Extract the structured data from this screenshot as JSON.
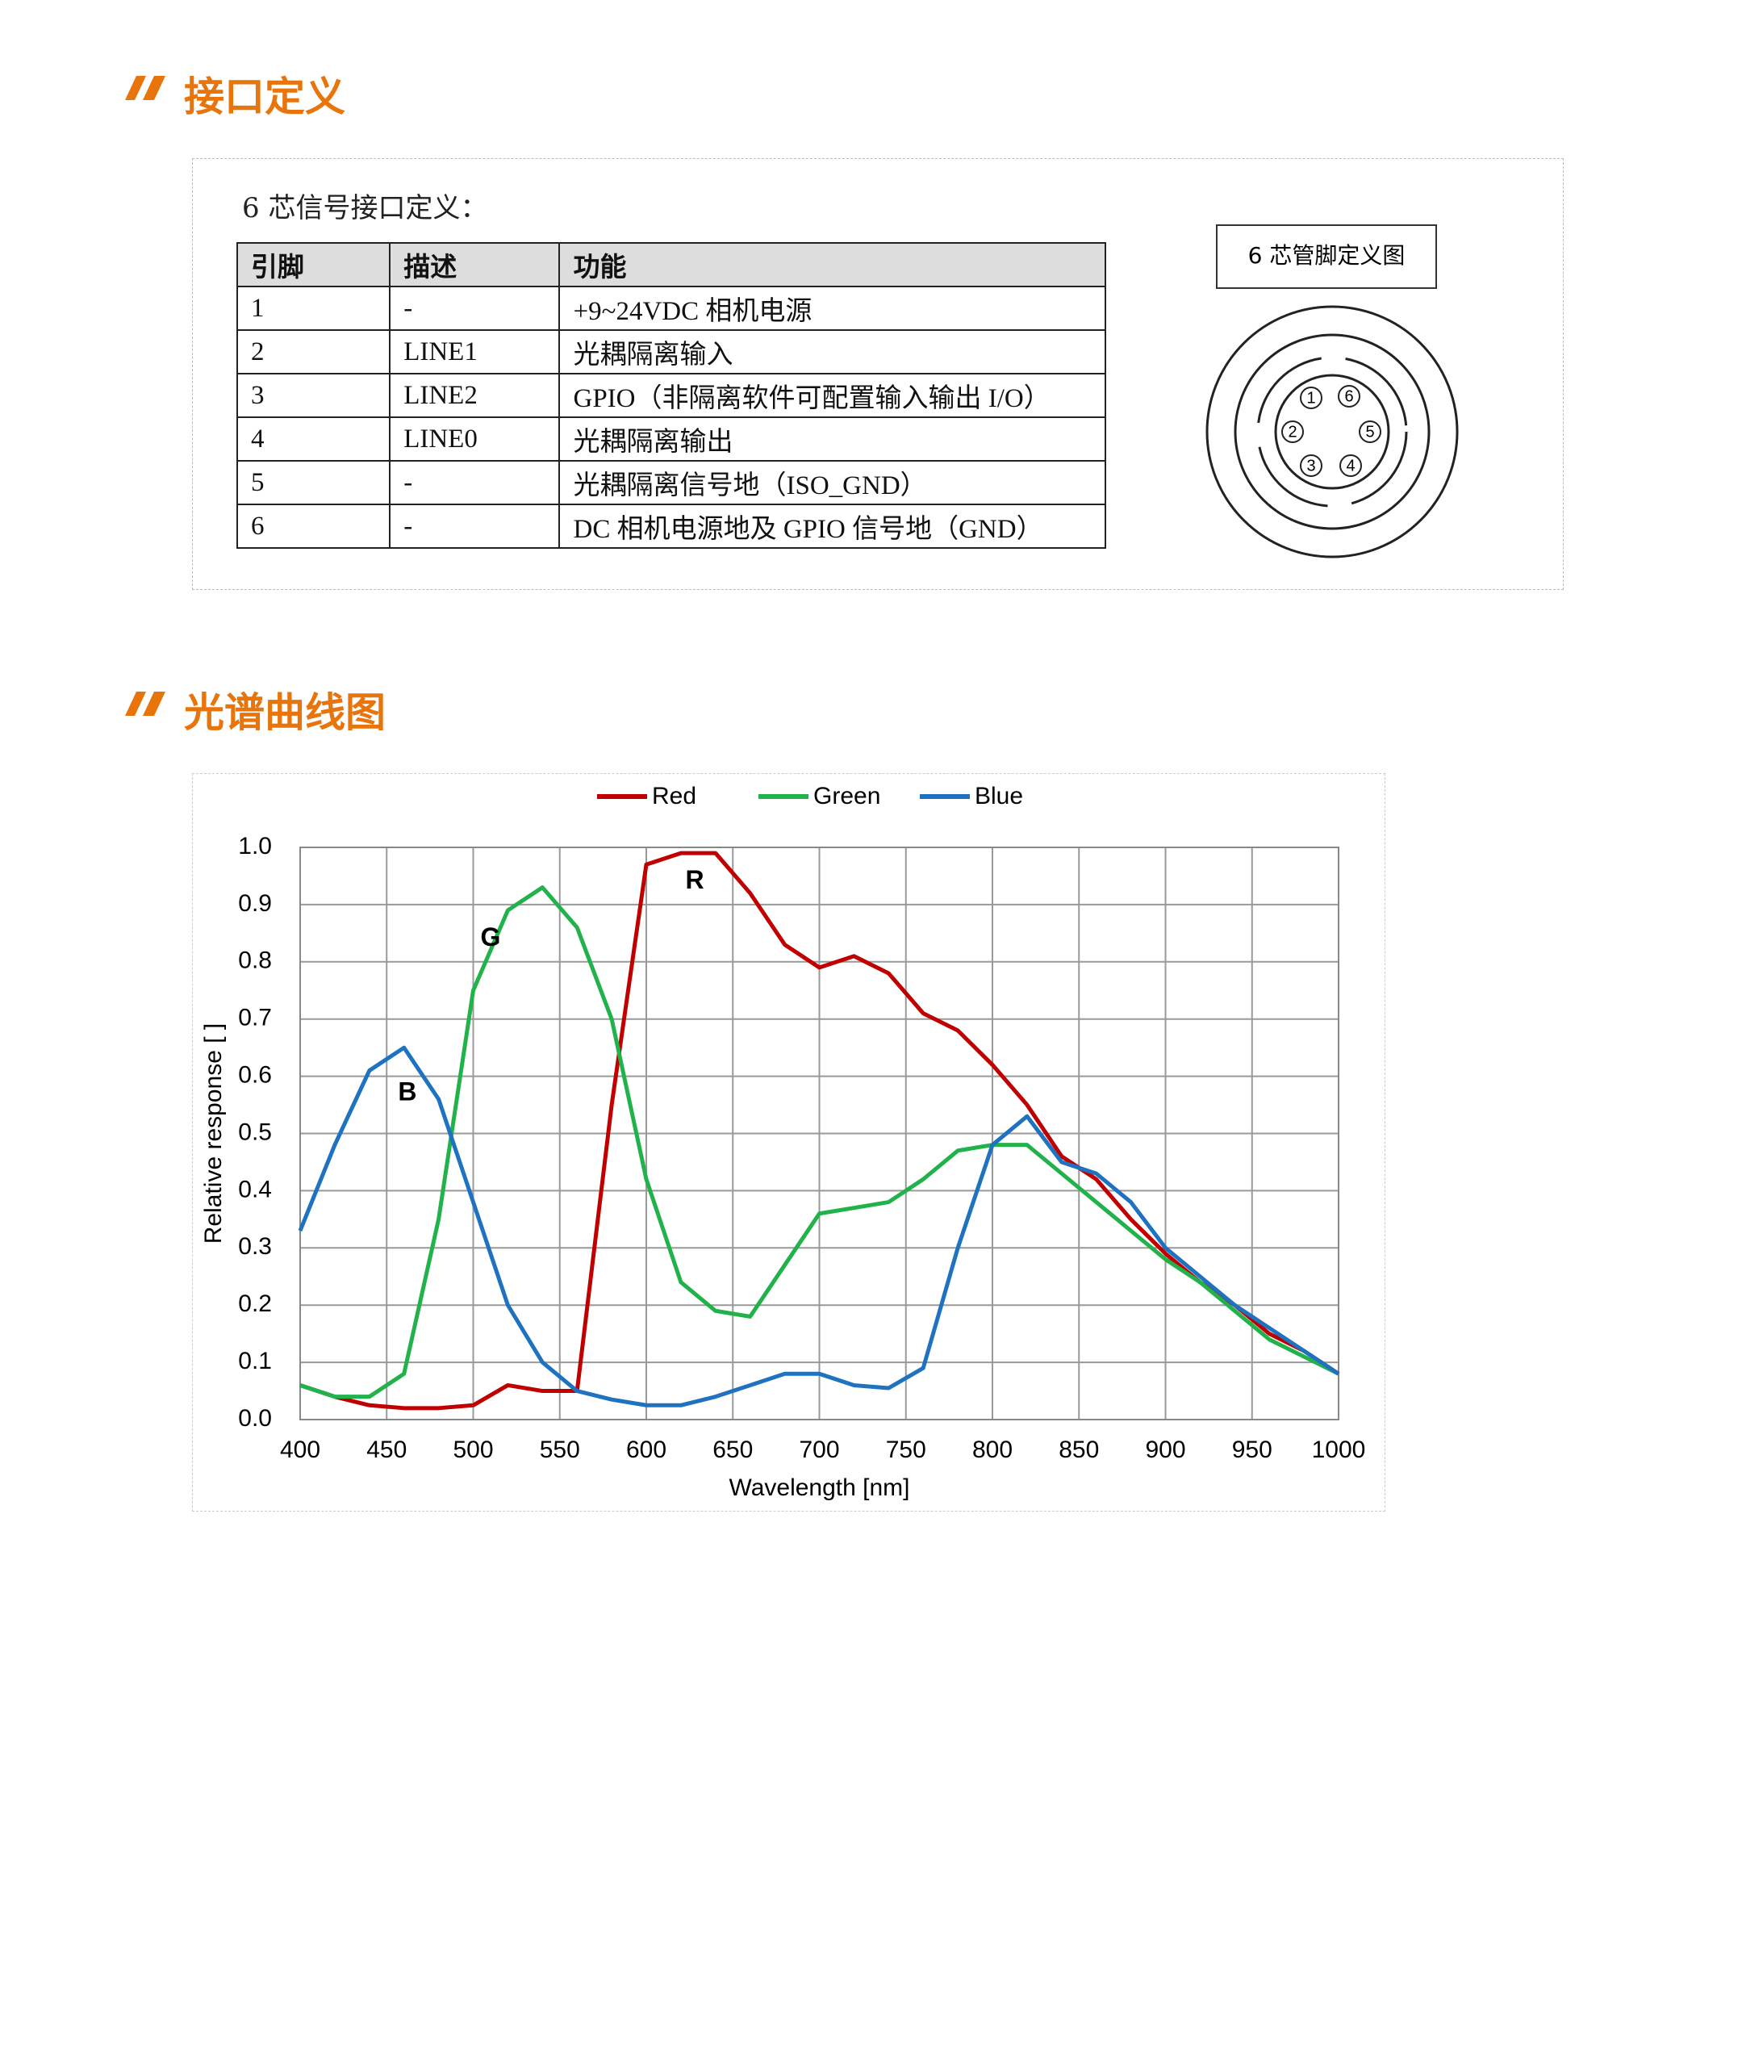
{
  "sections": [
    {
      "title": "接口定义"
    },
    {
      "title": "光谱曲线图"
    }
  ],
  "interface": {
    "caption": "6 芯信号接口定义：",
    "table": {
      "header": [
        "引脚",
        "描述",
        "功能"
      ],
      "rows": [
        [
          "1",
          "-",
          "+9~24VDC 相机电源"
        ],
        [
          "2",
          "LINE1",
          "光耦隔离输入"
        ],
        [
          "3",
          "LINE2",
          "GPIO（非隔离软件可配置输入输出 I/O）"
        ],
        [
          "4",
          "LINE0",
          "光耦隔离输出"
        ],
        [
          "5",
          "-",
          "光耦隔离信号地（ISO_GND）"
        ],
        [
          "6",
          "-",
          "DC 相机电源地及 GPIO 信号地（GND）"
        ]
      ]
    },
    "diagram": {
      "title": "6 芯管脚定义图",
      "pins": [
        "1",
        "2",
        "3",
        "4",
        "5",
        "6"
      ]
    }
  },
  "chart_data": {
    "type": "line",
    "x_label": "Wavelength [nm]",
    "y_label": "Relative response [ ]",
    "x": [
      400,
      420,
      440,
      460,
      480,
      500,
      520,
      540,
      560,
      580,
      600,
      620,
      640,
      660,
      680,
      700,
      720,
      740,
      760,
      780,
      800,
      820,
      840,
      860,
      880,
      900,
      920,
      940,
      960,
      980,
      1000
    ],
    "series": [
      {
        "name": "Red",
        "color": "#c00000",
        "values": [
          0.06,
          0.04,
          0.025,
          0.02,
          0.02,
          0.025,
          0.06,
          0.05,
          0.05,
          0.55,
          0.97,
          0.99,
          0.99,
          0.92,
          0.83,
          0.79,
          0.81,
          0.78,
          0.71,
          0.68,
          0.62,
          0.55,
          0.46,
          0.42,
          0.35,
          0.29,
          0.24,
          0.2,
          0.15,
          0.12,
          0.08
        ]
      },
      {
        "name": "Green",
        "color": "#21b24b",
        "values": [
          0.06,
          0.04,
          0.04,
          0.08,
          0.35,
          0.75,
          0.89,
          0.93,
          0.86,
          0.7,
          0.42,
          0.24,
          0.19,
          0.18,
          0.27,
          0.36,
          0.37,
          0.38,
          0.42,
          0.47,
          0.48,
          0.48,
          0.43,
          0.38,
          0.33,
          0.28,
          0.24,
          0.19,
          0.14,
          0.11,
          0.08
        ]
      },
      {
        "name": "Blue",
        "color": "#1f72c0",
        "values": [
          0.33,
          0.48,
          0.61,
          0.65,
          0.56,
          0.38,
          0.2,
          0.1,
          0.05,
          0.035,
          0.025,
          0.025,
          0.04,
          0.06,
          0.08,
          0.08,
          0.06,
          0.055,
          0.09,
          0.3,
          0.48,
          0.53,
          0.45,
          0.43,
          0.38,
          0.3,
          0.25,
          0.2,
          0.16,
          0.12,
          0.08
        ]
      }
    ],
    "annotations": [
      {
        "text": "R",
        "x": 628,
        "y": 0.94
      },
      {
        "text": "G",
        "x": 510,
        "y": 0.84
      },
      {
        "text": "B",
        "x": 462,
        "y": 0.57
      }
    ],
    "xlim": [
      400,
      1000
    ],
    "xticks": [
      400,
      450,
      500,
      550,
      600,
      650,
      700,
      750,
      800,
      850,
      900,
      950,
      1000
    ],
    "ylim": [
      0,
      1
    ],
    "yticks": [
      {
        "value": 0,
        "label": "0.0"
      },
      0.1,
      0.2,
      0.3,
      0.4,
      0.5,
      0.6,
      0.7,
      0.8,
      0.9,
      {
        "value": 1,
        "label": "1.0"
      }
    ],
    "grid": true,
    "legend": "top"
  }
}
